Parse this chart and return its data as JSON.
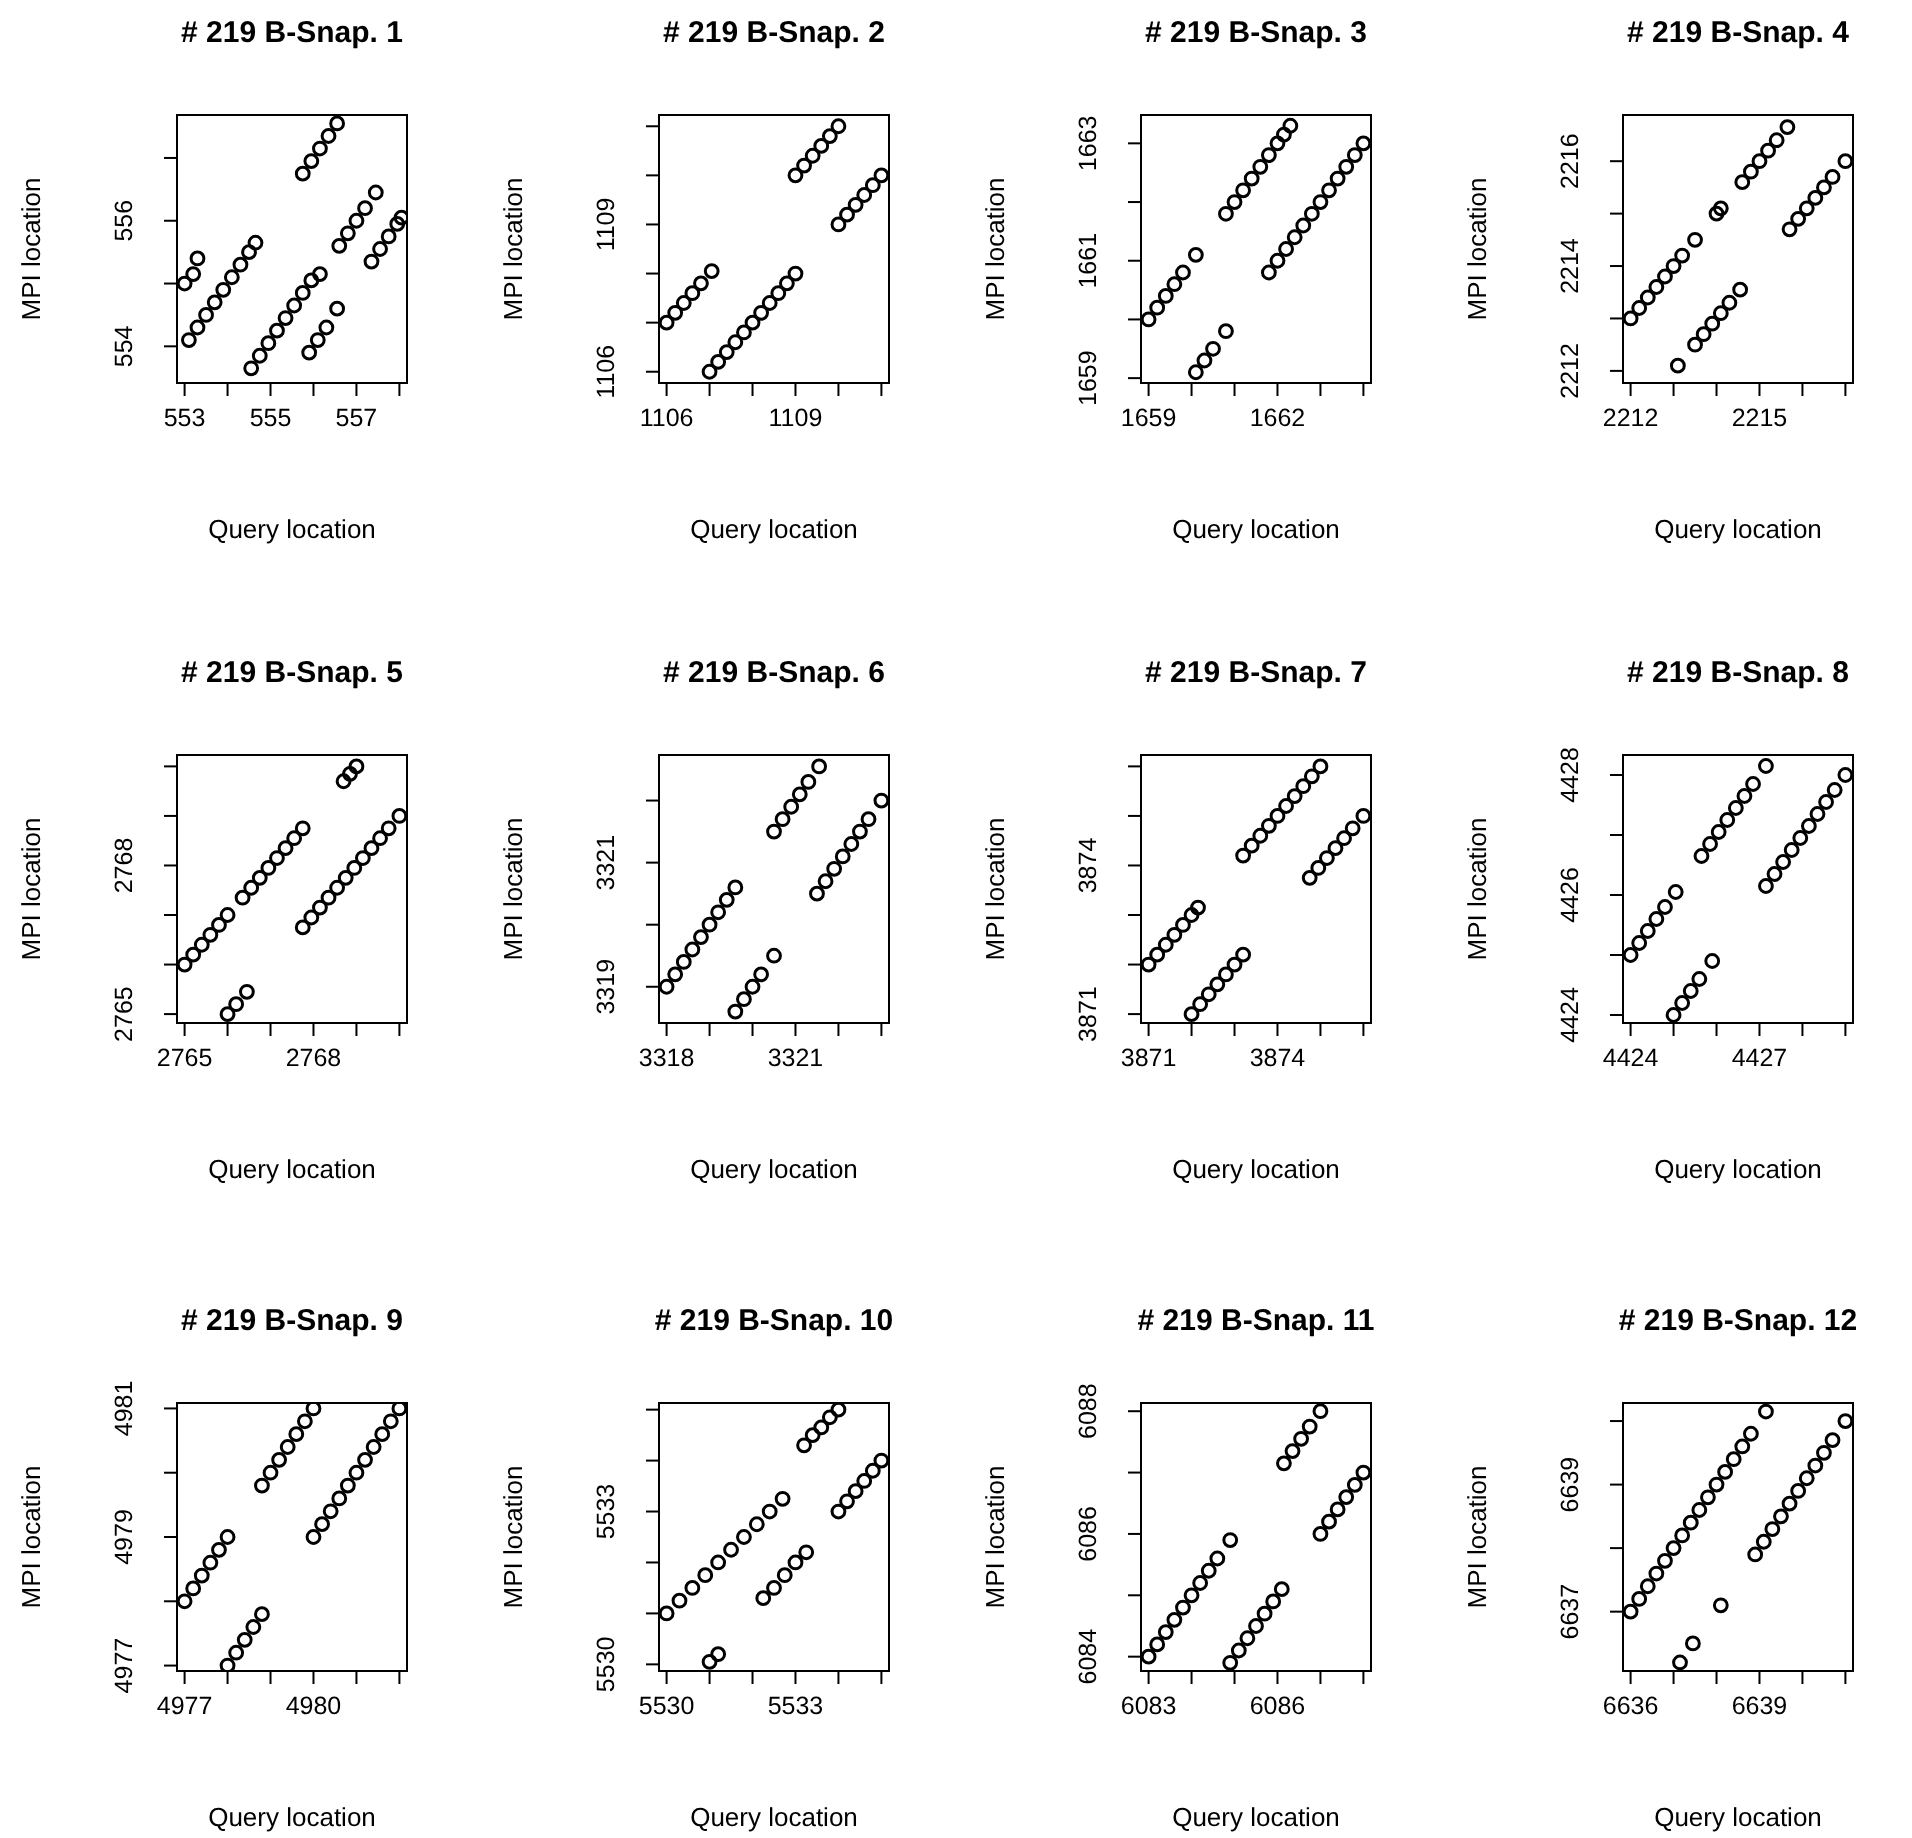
{
  "chart_data": [
    {
      "type": "scatter",
      "title": "# 219 B-Snap. 1",
      "xlabel": "Query location",
      "ylabel": "MPI location",
      "color": "#000000",
      "marker": "circle",
      "xlim": [
        552.8,
        558.2
      ],
      "ylim": [
        553.4,
        557.7
      ],
      "xticks": [
        553,
        {
          "value": 554,
          "label": null
        },
        555,
        {
          "value": 556,
          "label": null
        },
        557,
        {
          "value": 558,
          "label": null
        }
      ],
      "yticks": [
        554,
        {
          "value": 555,
          "label": null
        },
        556,
        {
          "value": 557,
          "label": null
        }
      ],
      "x": [
        553.1,
        553.3,
        553.5,
        553.7,
        553.9,
        554.1,
        554.3,
        554.5,
        554.65,
        553.0,
        553.2,
        553.3,
        554.55,
        554.75,
        554.95,
        555.15,
        555.35,
        555.55,
        555.75,
        555.95,
        555.9,
        556.1,
        556.3,
        556.55,
        556.15,
        555.75,
        555.95,
        556.15,
        556.35,
        556.55,
        556.6,
        556.8,
        557.0,
        557.2,
        557.45,
        557.35,
        557.55,
        557.75,
        557.95,
        558.05
      ],
      "values": [
        554.1,
        554.3,
        554.5,
        554.7,
        554.9,
        555.1,
        555.3,
        555.5,
        555.65,
        555.0,
        555.15,
        555.4,
        553.65,
        553.85,
        554.05,
        554.25,
        554.45,
        554.65,
        554.85,
        555.05,
        553.9,
        554.1,
        554.3,
        554.6,
        555.15,
        556.75,
        556.95,
        557.15,
        557.35,
        557.55,
        555.6,
        555.8,
        556.0,
        556.2,
        556.45,
        555.35,
        555.55,
        555.75,
        555.95,
        556.05
      ]
    },
    {
      "type": "scatter",
      "title": "# 219 B-Snap. 2",
      "xlabel": "Query location",
      "ylabel": "MPI location",
      "color": "#000000",
      "marker": "circle",
      "xlim": [
        1105.8,
        1111.2
      ],
      "ylim": [
        1105.75,
        1111.25
      ],
      "xticks": [
        1106,
        {
          "value": 1107,
          "label": null
        },
        {
          "value": 1108,
          "label": null
        },
        1109,
        {
          "value": 1110,
          "label": null
        },
        {
          "value": 1111,
          "label": null
        }
      ],
      "yticks": [
        1106,
        {
          "value": 1107,
          "label": null
        },
        {
          "value": 1108,
          "label": null
        },
        1109,
        {
          "value": 1110,
          "label": null
        },
        {
          "value": 1111,
          "label": null
        }
      ],
      "x": [
        1106,
        1106.2,
        1106.4,
        1106.6,
        1106.8,
        1107.05,
        1107,
        1107.2,
        1107.4,
        1107.6,
        1107.8,
        1108,
        1108.2,
        1108.4,
        1108.6,
        1108.8,
        1109,
        1109,
        1109.2,
        1109.4,
        1109.6,
        1109.8,
        1110,
        1110,
        1110.2,
        1110.4,
        1110.6,
        1110.8,
        1111
      ],
      "values": [
        1107,
        1107.2,
        1107.4,
        1107.6,
        1107.8,
        1108.05,
        1106,
        1106.2,
        1106.4,
        1106.6,
        1106.8,
        1107,
        1107.2,
        1107.4,
        1107.6,
        1107.8,
        1108,
        1110,
        1110.2,
        1110.4,
        1110.6,
        1110.8,
        1111,
        1109,
        1109.2,
        1109.4,
        1109.6,
        1109.8,
        1110
      ]
    },
    {
      "type": "scatter",
      "title": "# 219 B-Snap. 3",
      "xlabel": "Query location",
      "ylabel": "MPI location",
      "color": "#000000",
      "marker": "circle",
      "xlim": [
        1658.8,
        1664.2
      ],
      "ylim": [
        1658.9,
        1663.5
      ],
      "xticks": [
        1659,
        {
          "value": 1660,
          "label": null
        },
        {
          "value": 1661,
          "label": null
        },
        1662,
        {
          "value": 1663,
          "label": null
        },
        {
          "value": 1664,
          "label": null
        }
      ],
      "yticks": [
        1659,
        {
          "value": 1660,
          "label": null
        },
        1661,
        {
          "value": 1662,
          "label": null
        },
        1663
      ],
      "x": [
        1659,
        1659.2,
        1659.4,
        1659.6,
        1659.8,
        1660.1,
        1660.1,
        1660.3,
        1660.5,
        1660.8,
        1660.8,
        1661,
        1661.2,
        1661.4,
        1661.6,
        1661.8,
        1662,
        1662.15,
        1662.3,
        1661.8,
        1662,
        1662.2,
        1662.4,
        1662.6,
        1662.8,
        1663,
        1663.2,
        1663.4,
        1663.6,
        1663.8,
        1664
      ],
      "values": [
        1660,
        1660.2,
        1660.4,
        1660.6,
        1660.8,
        1661.1,
        1659.1,
        1659.3,
        1659.5,
        1659.8,
        1661.8,
        1662,
        1662.2,
        1662.4,
        1662.6,
        1662.8,
        1663,
        1663.15,
        1663.3,
        1660.8,
        1661,
        1661.2,
        1661.4,
        1661.6,
        1661.8,
        1662,
        1662.2,
        1662.4,
        1662.6,
        1662.8,
        1663
      ]
    },
    {
      "type": "scatter",
      "title": "# 219 B-Snap. 4",
      "xlabel": "Query location",
      "ylabel": "MPI location",
      "color": "#000000",
      "marker": "circle",
      "xlim": [
        2211.8,
        2217.2
      ],
      "ylim": [
        2211.75,
        2216.9
      ],
      "xticks": [
        2212,
        {
          "value": 2213,
          "label": null
        },
        {
          "value": 2214,
          "label": null
        },
        2215,
        {
          "value": 2216,
          "label": null
        },
        {
          "value": 2217,
          "label": null
        }
      ],
      "yticks": [
        2212,
        {
          "value": 2213,
          "label": null
        },
        2214,
        {
          "value": 2215,
          "label": null
        },
        2216
      ],
      "x": [
        2212,
        2212.2,
        2212.4,
        2212.6,
        2212.8,
        2213,
        2213.2,
        2213.5,
        2214,
        2214.1,
        2214.6,
        2214.8,
        2215,
        2215.2,
        2215.4,
        2215.65,
        2213.1,
        2213.5,
        2213.7,
        2213.9,
        2214.1,
        2214.3,
        2214.55,
        2215.7,
        2215.9,
        2216.1,
        2216.3,
        2216.5,
        2216.7,
        2217
      ],
      "values": [
        2213,
        2213.2,
        2213.4,
        2213.6,
        2213.8,
        2214,
        2214.2,
        2214.5,
        2215,
        2215.1,
        2215.6,
        2215.8,
        2216,
        2216.2,
        2216.4,
        2216.65,
        2212.1,
        2212.5,
        2212.7,
        2212.9,
        2213.1,
        2213.3,
        2213.55,
        2214.7,
        2214.9,
        2215.1,
        2215.3,
        2215.5,
        2215.7,
        2216
      ]
    },
    {
      "type": "scatter",
      "title": "# 219 B-Snap. 5",
      "xlabel": "Query location",
      "ylabel": "MPI location",
      "color": "#000000",
      "marker": "circle",
      "xlim": [
        2764.8,
        2770.2
      ],
      "ylim": [
        2764.8,
        2770.25
      ],
      "xticks": [
        2765,
        {
          "value": 2766,
          "label": null
        },
        {
          "value": 2767,
          "label": null
        },
        2768,
        {
          "value": 2769,
          "label": null
        },
        {
          "value": 2770,
          "label": null
        }
      ],
      "yticks": [
        2765,
        {
          "value": 2766,
          "label": null
        },
        {
          "value": 2767,
          "label": null
        },
        2768,
        {
          "value": 2769,
          "label": null
        },
        {
          "value": 2770,
          "label": null
        }
      ],
      "x": [
        2765,
        2765.2,
        2765.4,
        2765.6,
        2765.8,
        2766,
        2766.35,
        2766.55,
        2766.75,
        2766.95,
        2767.15,
        2767.35,
        2767.55,
        2767.75,
        2766,
        2766.2,
        2766.45,
        2767.75,
        2767.95,
        2768.15,
        2768.35,
        2768.55,
        2768.75,
        2768.95,
        2769.15,
        2769.35,
        2769.55,
        2769.75,
        2770,
        2768.7,
        2768.85,
        2769
      ],
      "values": [
        2766,
        2766.2,
        2766.4,
        2766.6,
        2766.8,
        2767,
        2767.35,
        2767.55,
        2767.75,
        2767.95,
        2768.15,
        2768.35,
        2768.55,
        2768.75,
        2765,
        2765.2,
        2765.45,
        2766.75,
        2766.95,
        2767.15,
        2767.35,
        2767.55,
        2767.75,
        2767.95,
        2768.15,
        2768.35,
        2768.55,
        2768.75,
        2769,
        2769.7,
        2769.85,
        2770
      ]
    },
    {
      "type": "scatter",
      "title": "# 219 B-Snap. 6",
      "xlabel": "Query location",
      "ylabel": "MPI location",
      "color": "#000000",
      "marker": "circle",
      "xlim": [
        3317.8,
        3323.2
      ],
      "ylim": [
        3318.4,
        3322.75
      ],
      "xticks": [
        3318,
        {
          "value": 3319,
          "label": null
        },
        {
          "value": 3320,
          "label": null
        },
        3321,
        {
          "value": 3322,
          "label": null
        },
        {
          "value": 3323,
          "label": null
        }
      ],
      "yticks": [
        3319,
        {
          "value": 3320,
          "label": null
        },
        3321,
        {
          "value": 3322,
          "label": null
        }
      ],
      "x": [
        3318,
        3318.2,
        3318.4,
        3318.6,
        3318.8,
        3319,
        3319.2,
        3319.4,
        3319.6,
        3319.6,
        3319.8,
        3320,
        3320.2,
        3320.5,
        3320.5,
        3320.7,
        3320.9,
        3321.1,
        3321.3,
        3321.55,
        3321.5,
        3321.7,
        3321.9,
        3322.1,
        3322.3,
        3322.5,
        3322.7,
        3323
      ],
      "values": [
        3319,
        3319.2,
        3319.4,
        3319.6,
        3319.8,
        3320,
        3320.2,
        3320.4,
        3320.6,
        3318.6,
        3318.8,
        3319,
        3319.2,
        3319.5,
        3321.5,
        3321.7,
        3321.9,
        3322.1,
        3322.3,
        3322.55,
        3320.5,
        3320.7,
        3320.9,
        3321.1,
        3321.3,
        3321.5,
        3321.7,
        3322
      ]
    },
    {
      "type": "scatter",
      "title": "# 219 B-Snap. 7",
      "xlabel": "Query location",
      "ylabel": "MPI location",
      "color": "#000000",
      "marker": "circle",
      "xlim": [
        3870.8,
        3876.2
      ],
      "ylim": [
        3870.8,
        3876.25
      ],
      "xticks": [
        3871,
        {
          "value": 3872,
          "label": null
        },
        {
          "value": 3873,
          "label": null
        },
        3874,
        {
          "value": 3875,
          "label": null
        },
        {
          "value": 3876,
          "label": null
        }
      ],
      "yticks": [
        3871,
        {
          "value": 3872,
          "label": null
        },
        {
          "value": 3873,
          "label": null
        },
        3874,
        {
          "value": 3875,
          "label": null
        },
        {
          "value": 3876,
          "label": null
        }
      ],
      "x": [
        3871,
        3871.2,
        3871.4,
        3871.6,
        3871.8,
        3872,
        3872.15,
        3872,
        3872.2,
        3872.4,
        3872.6,
        3872.8,
        3873,
        3873.2,
        3873.2,
        3873.4,
        3873.6,
        3873.8,
        3874,
        3874.2,
        3874.4,
        3874.6,
        3874.8,
        3875,
        3874.75,
        3874.95,
        3875.15,
        3875.35,
        3875.55,
        3875.75,
        3876
      ],
      "values": [
        3872,
        3872.2,
        3872.4,
        3872.6,
        3872.8,
        3873,
        3873.15,
        3871,
        3871.2,
        3871.4,
        3871.6,
        3871.8,
        3872,
        3872.2,
        3874.2,
        3874.4,
        3874.6,
        3874.8,
        3875,
        3875.2,
        3875.4,
        3875.6,
        3875.8,
        3876,
        3873.75,
        3873.95,
        3874.15,
        3874.35,
        3874.55,
        3874.75,
        3875
      ]
    },
    {
      "type": "scatter",
      "title": "# 219 B-Snap. 8",
      "xlabel": "Query location",
      "ylabel": "MPI location",
      "color": "#000000",
      "marker": "circle",
      "xlim": [
        4423.8,
        4429.2
      ],
      "ylim": [
        4423.85,
        4428.35
      ],
      "xticks": [
        4424,
        {
          "value": 4425,
          "label": null
        },
        {
          "value": 4426,
          "label": null
        },
        4427,
        {
          "value": 4428,
          "label": null
        },
        {
          "value": 4429,
          "label": null
        }
      ],
      "yticks": [
        4424,
        {
          "value": 4425,
          "label": null
        },
        4426,
        {
          "value": 4427,
          "label": null
        },
        4428
      ],
      "x": [
        4424,
        4424.2,
        4424.4,
        4424.6,
        4424.8,
        4425.05,
        4425,
        4425.2,
        4425.4,
        4425.6,
        4425.9,
        4425.65,
        4425.85,
        4426.05,
        4426.25,
        4426.45,
        4426.65,
        4426.85,
        4427.15,
        4427.15,
        4427.35,
        4427.55,
        4427.75,
        4427.95,
        4428.15,
        4428.35,
        4428.55,
        4428.75,
        4429
      ],
      "values": [
        4425,
        4425.2,
        4425.4,
        4425.6,
        4425.8,
        4426.05,
        4424,
        4424.2,
        4424.4,
        4424.6,
        4424.9,
        4426.65,
        4426.85,
        4427.05,
        4427.25,
        4427.45,
        4427.65,
        4427.85,
        4428.15,
        4426.15,
        4426.35,
        4426.55,
        4426.75,
        4426.95,
        4427.15,
        4427.35,
        4427.55,
        4427.75,
        4428
      ]
    },
    {
      "type": "scatter",
      "title": "# 219 B-Snap. 9",
      "xlabel": "Query location",
      "ylabel": "MPI location",
      "color": "#000000",
      "marker": "circle",
      "xlim": [
        4976.8,
        4982.2
      ],
      "ylim": [
        4976.9,
        4981.1
      ],
      "xticks": [
        4977,
        {
          "value": 4978,
          "label": null
        },
        {
          "value": 4979,
          "label": null
        },
        4980,
        {
          "value": 4981,
          "label": null
        },
        {
          "value": 4982,
          "label": null
        }
      ],
      "yticks": [
        4977,
        {
          "value": 4978,
          "label": null
        },
        4979,
        {
          "value": 4980,
          "label": null
        },
        4981
      ],
      "x": [
        4977,
        4977.2,
        4977.4,
        4977.6,
        4977.8,
        4978,
        4978,
        4978.2,
        4978.4,
        4978.6,
        4978.8,
        4978.8,
        4979,
        4979.2,
        4979.4,
        4979.6,
        4979.8,
        4980,
        4980,
        4980.2,
        4980.4,
        4980.6,
        4980.8,
        4981,
        4981.2,
        4981.4,
        4981.6,
        4981.8,
        4982
      ],
      "values": [
        4978,
        4978.2,
        4978.4,
        4978.6,
        4978.8,
        4979,
        4977,
        4977.2,
        4977.4,
        4977.6,
        4977.8,
        4979.8,
        4980,
        4980.2,
        4980.4,
        4980.6,
        4980.8,
        4981,
        4979,
        4979.2,
        4979.4,
        4979.6,
        4979.8,
        4980,
        4980.2,
        4980.4,
        4980.6,
        4980.8,
        4981
      ]
    },
    {
      "type": "scatter",
      "title": "# 219 B-Snap. 10",
      "xlabel": "Query location",
      "ylabel": "MPI location",
      "color": "#000000",
      "marker": "circle",
      "xlim": [
        5529.8,
        5535.2
      ],
      "ylim": [
        5529.85,
        5535.15
      ],
      "xticks": [
        5530,
        {
          "value": 5531,
          "label": null
        },
        {
          "value": 5532,
          "label": null
        },
        5533,
        {
          "value": 5534,
          "label": null
        },
        {
          "value": 5535,
          "label": null
        }
      ],
      "yticks": [
        5530,
        {
          "value": 5531,
          "label": null
        },
        {
          "value": 5532,
          "label": null
        },
        5533,
        {
          "value": 5534,
          "label": null
        },
        {
          "value": 5535,
          "label": null
        }
      ],
      "x": [
        5530,
        5530.3,
        5530.6,
        5530.9,
        5531.2,
        5531.5,
        5531.8,
        5532.1,
        5532.4,
        5532.7,
        5531,
        5531.2,
        5532.25,
        5532.5,
        5532.75,
        5533,
        5533.25,
        5533.2,
        5533.4,
        5533.6,
        5533.8,
        5534,
        5534,
        5534.2,
        5534.4,
        5534.6,
        5534.8,
        5535
      ],
      "values": [
        5531,
        5531.25,
        5531.5,
        5531.75,
        5532,
        5532.25,
        5532.5,
        5532.75,
        5533,
        5533.25,
        5530.05,
        5530.2,
        5531.3,
        5531.5,
        5531.75,
        5532,
        5532.2,
        5534.3,
        5534.5,
        5534.65,
        5534.85,
        5535,
        5533,
        5533.2,
        5533.4,
        5533.6,
        5533.8,
        5534
      ]
    },
    {
      "type": "scatter",
      "title": "# 219 B-Snap. 11",
      "xlabel": "Query location",
      "ylabel": "MPI location",
      "color": "#000000",
      "marker": "circle",
      "xlim": [
        6082.8,
        6088.2
      ],
      "ylim": [
        6083.75,
        6088.15
      ],
      "xticks": [
        6083,
        {
          "value": 6084,
          "label": null
        },
        {
          "value": 6085,
          "label": null
        },
        6086,
        {
          "value": 6087,
          "label": null
        },
        {
          "value": 6088,
          "label": null
        }
      ],
      "yticks": [
        6084,
        {
          "value": 6085,
          "label": null
        },
        6086,
        {
          "value": 6087,
          "label": null
        },
        6088
      ],
      "x": [
        6083,
        6083.2,
        6083.4,
        6083.6,
        6083.8,
        6084,
        6084.2,
        6084.4,
        6084.6,
        6084.9,
        6084.9,
        6085.1,
        6085.3,
        6085.5,
        6085.7,
        6085.9,
        6086.1,
        6086.15,
        6086.35,
        6086.55,
        6086.75,
        6087,
        6087,
        6087.2,
        6087.4,
        6087.6,
        6087.8,
        6088
      ],
      "values": [
        6084,
        6084.2,
        6084.4,
        6084.6,
        6084.8,
        6085,
        6085.2,
        6085.4,
        6085.6,
        6085.9,
        6083.9,
        6084.1,
        6084.3,
        6084.5,
        6084.7,
        6084.9,
        6085.1,
        6087.15,
        6087.35,
        6087.55,
        6087.75,
        6088,
        6086,
        6086.2,
        6086.4,
        6086.6,
        6086.8,
        6087
      ]
    },
    {
      "type": "scatter",
      "title": "# 219 B-Snap. 12",
      "xlabel": "Query location",
      "ylabel": "MPI location",
      "color": "#000000",
      "marker": "circle",
      "xlim": [
        6635.8,
        6641.2
      ],
      "ylim": [
        6636.05,
        6640.3
      ],
      "xticks": [
        6636,
        {
          "value": 6637,
          "label": null
        },
        {
          "value": 6638,
          "label": null
        },
        6639,
        {
          "value": 6640,
          "label": null
        },
        {
          "value": 6641,
          "label": null
        }
      ],
      "yticks": [
        6637,
        {
          "value": 6638,
          "label": null
        },
        6639,
        {
          "value": 6640,
          "label": null
        }
      ],
      "x": [
        6636,
        6636.2,
        6636.4,
        6636.6,
        6636.8,
        6637,
        6637.2,
        6637.4,
        6637.6,
        6637.8,
        6638,
        6638.2,
        6638.4,
        6638.6,
        6638.8,
        6639.15,
        6637.15,
        6637.45,
        6638.1,
        6638.9,
        6639.1,
        6639.3,
        6639.5,
        6639.7,
        6639.9,
        6640.1,
        6640.3,
        6640.5,
        6640.7,
        6641
      ],
      "values": [
        6637,
        6637.2,
        6637.4,
        6637.6,
        6637.8,
        6638,
        6638.2,
        6638.4,
        6638.6,
        6638.8,
        6639,
        6639.2,
        6639.4,
        6639.6,
        6639.8,
        6640.15,
        6636.2,
        6636.5,
        6637.1,
        6637.9,
        6638.1,
        6638.3,
        6638.5,
        6638.7,
        6638.9,
        6639.1,
        6639.3,
        6639.5,
        6639.7,
        6640
      ]
    }
  ]
}
